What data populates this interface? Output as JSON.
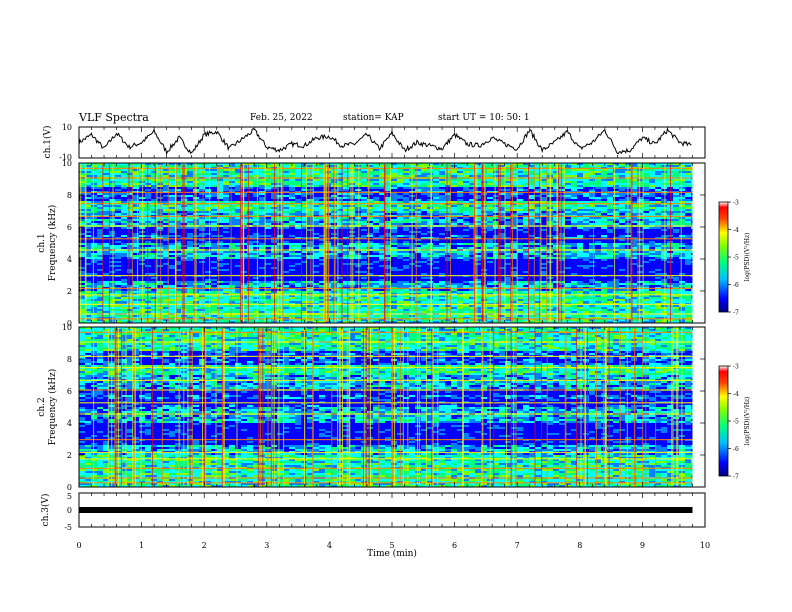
{
  "header": {
    "title": "VLF Spectra",
    "date": "Feb. 25, 2022",
    "station": "station= KAP",
    "start": "start  UT =   10: 50: 1"
  },
  "chart_data": [
    {
      "type": "line",
      "panel": "ch1-waveform",
      "ylabel": "ch.1(V)",
      "ylim": [
        -10,
        10
      ],
      "yticks": [
        "10",
        "-10"
      ],
      "xlim": [
        0,
        10
      ],
      "series": [
        {
          "x": [
            0,
            0.2,
            0.4,
            0.6,
            0.8,
            1.0,
            1.2,
            1.4,
            1.6,
            1.8,
            2.0,
            2.2,
            2.4,
            2.6,
            2.8,
            3.0,
            3.2,
            3.4,
            3.6,
            3.8,
            4.0,
            4.2,
            4.4,
            4.6,
            4.8,
            5.0,
            5.2,
            5.4,
            5.6,
            5.8,
            6.0,
            6.2,
            6.4,
            6.6,
            6.8,
            7.0,
            7.2,
            7.4,
            7.6,
            7.8,
            8.0,
            8.2,
            8.4,
            8.6,
            8.8,
            9.0,
            9.2,
            9.4,
            9.6,
            9.8
          ],
          "values": [
            0,
            5,
            -4,
            6,
            -3,
            0,
            7,
            -6,
            3,
            -7,
            5,
            7,
            -4,
            2,
            8,
            -3,
            -5,
            -1,
            -2,
            3,
            4,
            -2,
            -1,
            5,
            -4,
            6,
            -5,
            0,
            -2,
            -4,
            5,
            -1,
            -2,
            3,
            -1,
            -4,
            8,
            -5,
            0,
            7,
            -4,
            0,
            8,
            -6,
            -5,
            3,
            -1,
            8,
            0,
            -2
          ]
        }
      ]
    },
    {
      "type": "heatmap",
      "panel": "ch1-spectrogram",
      "ylabel": "ch.1\nFrequency (kHz)",
      "ylim": [
        0,
        10
      ],
      "yticks": [
        "0",
        "2",
        "4",
        "6",
        "8",
        "10"
      ],
      "xlim": [
        0,
        9.8
      ],
      "colorbar": {
        "label": "log(PSD)(V²/Hz)",
        "range": [
          -7,
          -3
        ],
        "ticks": [
          "-3",
          "-4",
          "-5",
          "-6",
          "-7"
        ]
      }
    },
    {
      "type": "heatmap",
      "panel": "ch2-spectrogram",
      "ylabel": "ch.2\nFrequency (kHz)",
      "ylim": [
        0,
        10
      ],
      "yticks": [
        "0",
        "2",
        "4",
        "6",
        "8",
        "10"
      ],
      "xlim": [
        0,
        9.8
      ],
      "colorbar": {
        "label": "log(PSD)(V²/Hz)",
        "range": [
          -7,
          -3
        ],
        "ticks": [
          "-3",
          "-4",
          "-5",
          "-6",
          "-7"
        ]
      }
    },
    {
      "type": "line",
      "panel": "ch3-waveform",
      "ylabel": "ch.3(V)",
      "ylim": [
        -5,
        5
      ],
      "yticks": [
        "5",
        "0",
        "-5"
      ],
      "xlim": [
        0,
        10
      ],
      "series": [
        {
          "x": [
            0,
            9.8
          ],
          "values": [
            0,
            0
          ]
        }
      ]
    }
  ],
  "xaxis": {
    "label": "Time  (min)",
    "ticks": [
      "0",
      "1",
      "2",
      "3",
      "4",
      "5",
      "6",
      "7",
      "8",
      "9",
      "10"
    ]
  },
  "ch1_label": "ch.1",
  "ch2_label": "ch.2",
  "freq_label": "Frequency (kHz)",
  "colors": {
    "spectral": [
      "#00007f",
      "#0000ff",
      "#0080ff",
      "#00ffff",
      "#00ff80",
      "#80ff00",
      "#ffff00",
      "#ff8000",
      "#ff0000",
      "#7f0000"
    ]
  }
}
